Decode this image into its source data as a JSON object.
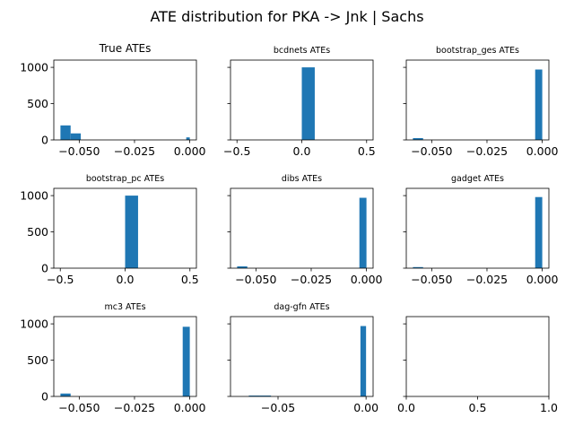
{
  "figure": {
    "title": "ATE distribution for PKA -> Jnk | Sachs"
  },
  "chart_data": [
    {
      "type": "bar",
      "title": "True ATEs",
      "title_size": "large",
      "xlim": [
        -0.0615,
        0.003
      ],
      "ylim": [
        0,
        1100
      ],
      "xticks": [
        -0.05,
        -0.025,
        0.0
      ],
      "xtick_labels": [
        "−0.050",
        "−0.025",
        "0.000"
      ],
      "yticks": [
        0,
        500,
        1000
      ],
      "ytick_labels": [
        "0",
        "500",
        "1000"
      ],
      "show_ylabels": true,
      "bars": [
        {
          "x0": -0.0585,
          "x1": -0.0539,
          "value": 200
        },
        {
          "x0": -0.0539,
          "x1": -0.0493,
          "value": 90
        },
        {
          "x0": -0.0016,
          "x1": 0.0,
          "value": 35
        }
      ]
    },
    {
      "type": "bar",
      "title": "bcdnets ATEs",
      "title_size": "small",
      "xlim": [
        -0.55,
        0.55
      ],
      "ylim": [
        0,
        1100
      ],
      "xticks": [
        -0.5,
        0.0,
        0.5
      ],
      "xtick_labels": [
        "−0.5",
        "0.0",
        "0.5"
      ],
      "yticks": [
        0,
        500,
        1000
      ],
      "ytick_labels": [
        "0",
        "500",
        "1000"
      ],
      "show_ylabels": false,
      "bars": [
        {
          "x0": 0.0,
          "x1": 0.1,
          "value": 1000
        }
      ]
    },
    {
      "type": "bar",
      "title": "bootstrap_ges ATEs",
      "title_size": "small",
      "xlim": [
        -0.0615,
        0.003
      ],
      "ylim": [
        0,
        1100
      ],
      "xticks": [
        -0.05,
        -0.025,
        0.0
      ],
      "xtick_labels": [
        "−0.050",
        "−0.025",
        "0.000"
      ],
      "yticks": [
        0,
        500,
        1000
      ],
      "ytick_labels": [
        "0",
        "500",
        "1000"
      ],
      "show_ylabels": false,
      "bars": [
        {
          "x0": -0.0585,
          "x1": -0.0539,
          "value": 25
        },
        {
          "x0": -0.0032,
          "x1": 0.0,
          "value": 970
        }
      ]
    },
    {
      "type": "bar",
      "title": "bootstrap_pc ATEs",
      "title_size": "small",
      "xlim": [
        -0.55,
        0.55
      ],
      "ylim": [
        0,
        1100
      ],
      "xticks": [
        -0.5,
        0.0,
        0.5
      ],
      "xtick_labels": [
        "−0.5",
        "0.0",
        "0.5"
      ],
      "yticks": [
        0,
        500,
        1000
      ],
      "ytick_labels": [
        "0",
        "500",
        "1000"
      ],
      "show_ylabels": true,
      "bars": [
        {
          "x0": 0.0,
          "x1": 0.1,
          "value": 1000
        }
      ]
    },
    {
      "type": "bar",
      "title": "dibs ATEs",
      "title_size": "small",
      "xlim": [
        -0.0615,
        0.003
      ],
      "ylim": [
        0,
        1100
      ],
      "xticks": [
        -0.05,
        -0.025,
        0.0
      ],
      "xtick_labels": [
        "−0.050",
        "−0.025",
        "0.000"
      ],
      "yticks": [
        0,
        500,
        1000
      ],
      "ytick_labels": [
        "0",
        "500",
        "1000"
      ],
      "show_ylabels": false,
      "bars": [
        {
          "x0": -0.0585,
          "x1": -0.0539,
          "value": 25
        },
        {
          "x0": -0.0032,
          "x1": 0.0,
          "value": 970
        }
      ]
    },
    {
      "type": "bar",
      "title": "gadget ATEs",
      "title_size": "small",
      "xlim": [
        -0.0615,
        0.003
      ],
      "ylim": [
        0,
        1100
      ],
      "xticks": [
        -0.05,
        -0.025,
        0.0
      ],
      "xtick_labels": [
        "−0.050",
        "−0.025",
        "0.000"
      ],
      "yticks": [
        0,
        500,
        1000
      ],
      "ytick_labels": [
        "0",
        "500",
        "1000"
      ],
      "show_ylabels": false,
      "bars": [
        {
          "x0": -0.0585,
          "x1": -0.0539,
          "value": 15
        },
        {
          "x0": -0.0032,
          "x1": 0.0,
          "value": 980
        }
      ]
    },
    {
      "type": "bar",
      "title": "mc3 ATEs",
      "title_size": "small",
      "xlim": [
        -0.0615,
        0.003
      ],
      "ylim": [
        0,
        1100
      ],
      "xticks": [
        -0.05,
        -0.025,
        0.0
      ],
      "xtick_labels": [
        "−0.050",
        "−0.025",
        "0.000"
      ],
      "yticks": [
        0,
        500,
        1000
      ],
      "ytick_labels": [
        "0",
        "500",
        "1000"
      ],
      "show_ylabels": true,
      "bars": [
        {
          "x0": -0.0585,
          "x1": -0.0539,
          "value": 40
        },
        {
          "x0": -0.0032,
          "x1": 0.0,
          "value": 960
        }
      ]
    },
    {
      "type": "bar",
      "title": "dag-gfn ATEs",
      "title_size": "small",
      "xlim": [
        -0.077,
        0.004
      ],
      "ylim": [
        0,
        1100
      ],
      "xticks": [
        -0.05,
        0.0
      ],
      "xtick_labels": [
        "−0.05",
        "0.00"
      ],
      "yticks": [
        0,
        500,
        1000
      ],
      "ytick_labels": [
        "0",
        "500",
        "1000"
      ],
      "show_ylabels": false,
      "bars": [
        {
          "x0": -0.0666,
          "x1": -0.0602,
          "value": 12
        },
        {
          "x0": -0.0602,
          "x1": -0.054,
          "value": 12
        },
        {
          "x0": -0.0032,
          "x1": 0.0,
          "value": 970
        }
      ]
    },
    {
      "type": "bar",
      "title": "",
      "title_size": "small",
      "xlim": [
        0,
        1
      ],
      "ylim": [
        0,
        1100
      ],
      "xticks": [
        0.0,
        0.5,
        1.0
      ],
      "xtick_labels": [
        "0.0",
        "0.5",
        "1.0"
      ],
      "yticks": [
        0,
        500,
        1000
      ],
      "ytick_labels": [
        "0",
        "500",
        "1000"
      ],
      "show_ylabels": false,
      "bars": []
    }
  ]
}
